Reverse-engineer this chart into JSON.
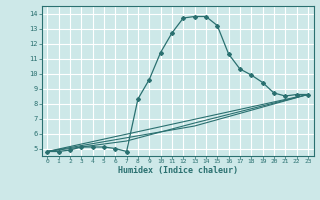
{
  "title": "",
  "xlabel": "Humidex (Indice chaleur)",
  "ylabel": "",
  "bg_color": "#cde8e8",
  "grid_color": "#ffffff",
  "line_color": "#2a7070",
  "xlim": [
    -0.5,
    23.5
  ],
  "ylim": [
    4.5,
    14.5
  ],
  "xticks": [
    0,
    1,
    2,
    3,
    4,
    5,
    6,
    7,
    8,
    9,
    10,
    11,
    12,
    13,
    14,
    15,
    16,
    17,
    18,
    19,
    20,
    21,
    22,
    23
  ],
  "yticks": [
    5,
    6,
    7,
    8,
    9,
    10,
    11,
    12,
    13,
    14
  ],
  "series": [
    {
      "x": [
        0,
        1,
        2,
        3,
        4,
        5,
        6,
        7,
        8,
        9,
        10,
        11,
        12,
        13,
        14,
        15,
        16,
        17,
        18,
        19,
        20,
        21,
        22,
        23
      ],
      "y": [
        4.8,
        4.8,
        4.9,
        5.1,
        5.1,
        5.1,
        5.0,
        4.8,
        8.3,
        9.6,
        11.4,
        12.7,
        13.7,
        13.8,
        13.8,
        13.2,
        11.3,
        10.3,
        9.9,
        9.4,
        8.7,
        8.5,
        8.6,
        8.6
      ]
    },
    {
      "x": [
        0,
        23
      ],
      "y": [
        4.8,
        8.6
      ]
    },
    {
      "x": [
        0,
        13,
        23
      ],
      "y": [
        4.8,
        6.5,
        8.6
      ]
    },
    {
      "x": [
        0,
        7,
        13,
        23
      ],
      "y": [
        4.8,
        5.5,
        6.7,
        8.6
      ]
    }
  ]
}
